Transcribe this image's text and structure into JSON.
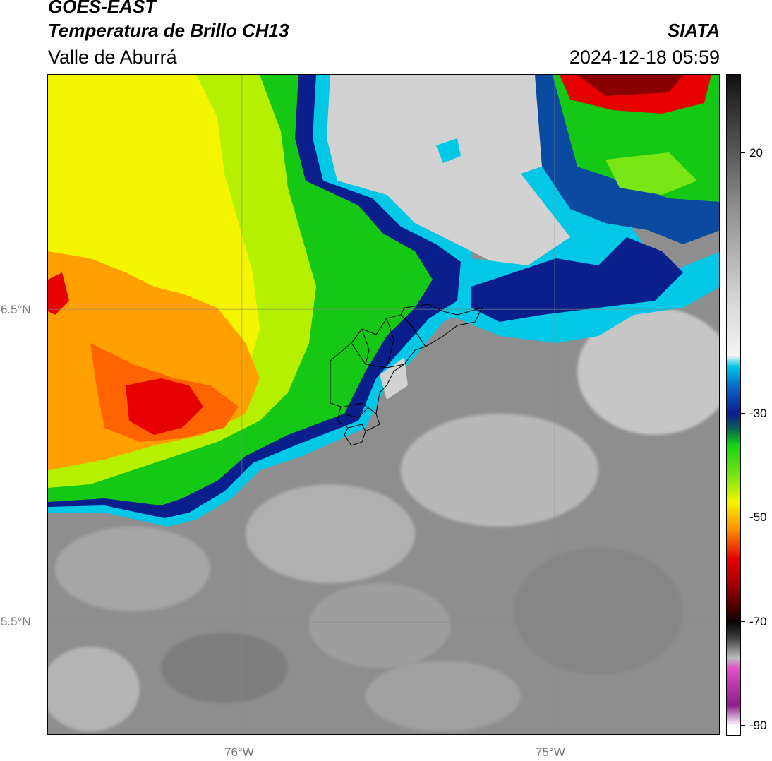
{
  "header": {
    "source": "GOES-EAST",
    "product": "Temperatura de Brillo CH13",
    "region": "Valle de Aburrá",
    "organization": "SIATA",
    "timestamp": "2024-12-18 05:59"
  },
  "map": {
    "lat_labels": [
      "6.5°N",
      "5.5°N"
    ],
    "lon_labels": [
      "76°W",
      "75°W"
    ],
    "lat_range": [
      5.137,
      7.25
    ],
    "lon_range": [
      -76.62,
      -74.47
    ],
    "gridlines": true,
    "lat_grid": [
      6.5,
      5.5
    ],
    "lon_grid": [
      -76.0,
      -75.0
    ]
  },
  "colorbar": {
    "variable": "brightness temperature",
    "range": [
      -92,
      35
    ],
    "tick_values": [
      20,
      -30,
      -50,
      -70,
      -90
    ],
    "tick_labels": [
      "20",
      "-30",
      "-50",
      "-70",
      "-90"
    ],
    "colors": {
      "warm_max": "#ffffff",
      "warm_mid": "#8c8c8c",
      "cold_cyan": "#00c8e6",
      "cold_navy": "#0a1e8c",
      "green": "#14d214",
      "yellow": "#f5f500",
      "orange": "#ff9600",
      "red": "#e60000",
      "black": "#050505",
      "magenta": "#e050c8",
      "purple": "#8c1e8c"
    }
  }
}
